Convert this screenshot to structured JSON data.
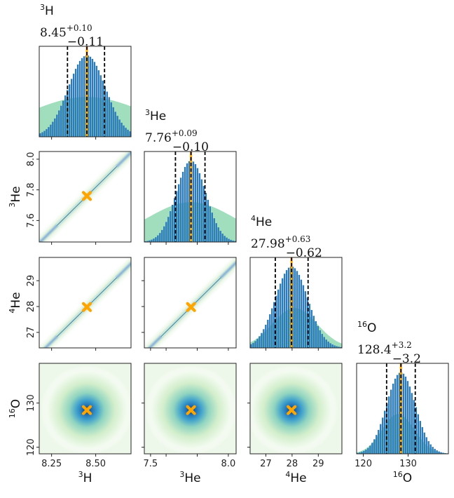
{
  "chart_data": {
    "type": "corner",
    "params": [
      {
        "key": "H3",
        "iso": "3",
        "el": "H",
        "truth": 8.45,
        "best": "8.45",
        "plus": "+0.10",
        "minus": "−0.11",
        "q": [
          8.34,
          8.45,
          8.55
        ],
        "sigma": 0.105,
        "prior_mean": 8.45,
        "prior_sigma": 0.34,
        "range": [
          8.18,
          8.7
        ],
        "ticks": [
          8.25,
          8.5
        ],
        "tick_labels": [
          "8.25",
          "8.50"
        ]
      },
      {
        "key": "He3",
        "iso": "3",
        "el": "He",
        "truth": 7.76,
        "best": "7.76",
        "plus": "+0.09",
        "minus": "−0.10",
        "q": [
          7.66,
          7.76,
          7.85
        ],
        "sigma": 0.095,
        "prior_mean": 7.76,
        "prior_sigma": 0.28,
        "range": [
          7.46,
          8.05
        ],
        "ticks": [
          7.5,
          7.6,
          7.8,
          8.0
        ],
        "tick_labels_x": [
          "7.5",
          "8.0"
        ],
        "tick_labels_y": [
          "7.6",
          "7.8",
          "8.0"
        ]
      },
      {
        "key": "He4",
        "iso": "4",
        "el": "He",
        "truth": 27.98,
        "best": "27.98",
        "plus": "+0.63",
        "minus": "−0.62",
        "q": [
          27.36,
          27.98,
          28.61
        ],
        "sigma": 0.62,
        "prior_mean": 28.1,
        "prior_sigma": 0.85,
        "range": [
          26.4,
          29.9
        ],
        "ticks": [
          27,
          28,
          29
        ],
        "tick_labels": [
          "27",
          "28",
          "29"
        ]
      },
      {
        "key": "O16",
        "iso": "16",
        "el": "O",
        "truth": 128.4,
        "best": "128.4",
        "plus": "+3.2",
        "minus": "−3.2",
        "q": [
          125.2,
          128.4,
          131.6
        ],
        "sigma": 3.2,
        "prior_mean": 127.8,
        "prior_sigma": 3.6,
        "range": [
          118.5,
          139
        ],
        "ticks": [
          120,
          130
        ],
        "tick_labels": [
          "120",
          "130"
        ]
      }
    ],
    "series": [
      {
        "name": "posterior",
        "color": "#2b7bba",
        "style": "histogram"
      },
      {
        "name": "prior",
        "color": "#8fd8b2",
        "style": "filled density"
      },
      {
        "name": "true value",
        "color": "#ffa500",
        "style": "vertical line / cross marker"
      },
      {
        "name": "16-50-84 percentiles",
        "color": "#000000",
        "style": "dashed vertical lines"
      }
    ]
  }
}
